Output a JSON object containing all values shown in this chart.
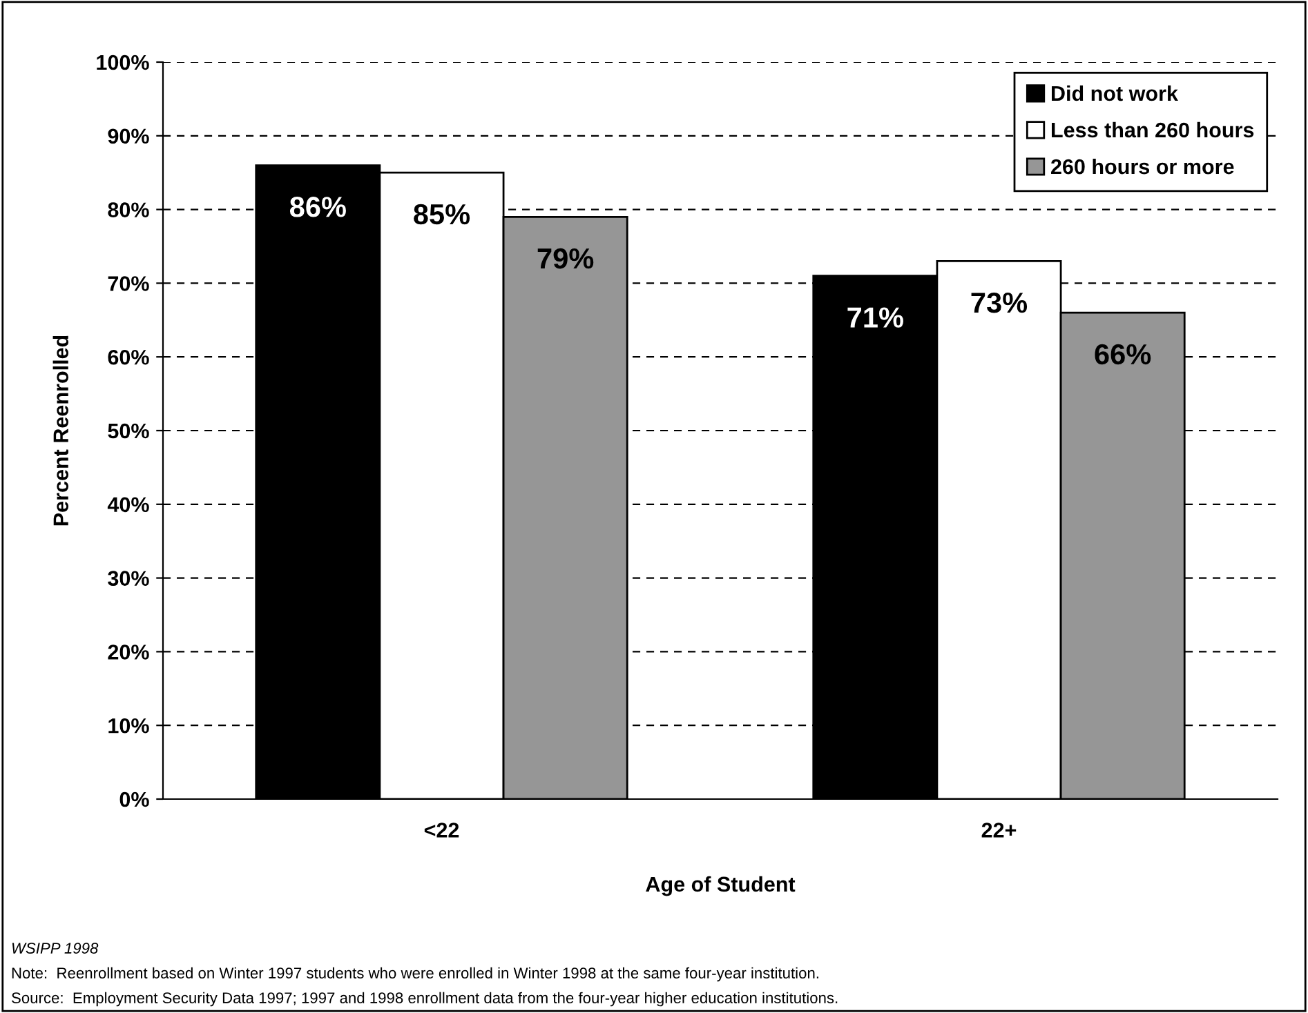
{
  "chart_data": {
    "type": "bar",
    "xlabel": "Age of Student",
    "ylabel": "Percent Reenrolled",
    "categories": [
      "<22",
      "22+"
    ],
    "series": [
      {
        "name": "Did not work",
        "color": "#000000",
        "values": [
          86,
          71
        ],
        "value_labels": [
          "86%",
          "71%"
        ]
      },
      {
        "name": "Less than 260 hours",
        "color": "#ffffff",
        "values": [
          85,
          73
        ],
        "value_labels": [
          "85%",
          "73%"
        ]
      },
      {
        "name": "260 hours or more",
        "color": "#969696",
        "values": [
          79,
          66
        ],
        "value_labels": [
          "79%",
          "66%"
        ]
      }
    ],
    "ylim": [
      0,
      100
    ],
    "yticks": [
      {
        "value": 0,
        "label": "0%"
      },
      {
        "value": 10,
        "label": "10%"
      },
      {
        "value": 20,
        "label": "20%"
      },
      {
        "value": 30,
        "label": "30%"
      },
      {
        "value": 40,
        "label": "40%"
      },
      {
        "value": 50,
        "label": "50%"
      },
      {
        "value": 60,
        "label": "60%"
      },
      {
        "value": 70,
        "label": "70%"
      },
      {
        "value": 80,
        "label": "80%"
      },
      {
        "value": 90,
        "label": "90%"
      },
      {
        "value": 100,
        "label": "100%"
      }
    ],
    "grid": "y",
    "legend": "top right",
    "annotations": [
      "WSIPP 1998",
      "Note:  Reenrollment based on Winter 1997 students who were enrolled in Winter 1998 at the same four-year institution.",
      "Source:  Employment Security Data 1997; 1997 and 1998 enrollment data from the four-year higher education institutions."
    ]
  }
}
